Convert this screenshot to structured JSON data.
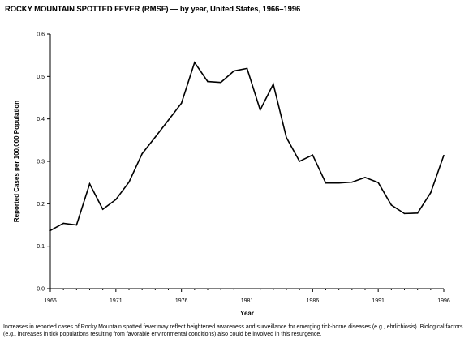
{
  "chart_data": {
    "type": "line",
    "title": "ROCKY MOUNTAIN SPOTTED FEVER (RMSF) — by year, United States, 1966–1996",
    "xlabel": "Year",
    "ylabel": "Reported Cases per 100,000 Population",
    "xlim": [
      1966,
      1996
    ],
    "ylim": [
      0,
      0.6
    ],
    "xticks": [
      "1966",
      "1971",
      "1976",
      "1981",
      "1986",
      "1991",
      "1996"
    ],
    "yticks": [
      "0.0",
      "0.1",
      "0.2",
      "0.3",
      "0.4",
      "0.5",
      "0.6"
    ],
    "grid": false,
    "x": [
      1966,
      1967,
      1968,
      1969,
      1970,
      1971,
      1972,
      1973,
      1974,
      1975,
      1976,
      1977,
      1978,
      1979,
      1980,
      1981,
      1982,
      1983,
      1984,
      1985,
      1986,
      1987,
      1988,
      1989,
      1990,
      1991,
      1992,
      1993,
      1994,
      1995,
      1996
    ],
    "series": [
      {
        "values": [
          0.137,
          0.154,
          0.15,
          0.247,
          0.187,
          0.21,
          0.251,
          0.318,
          0.357,
          0.397,
          0.437,
          0.533,
          0.488,
          0.486,
          0.513,
          0.519,
          0.421,
          0.482,
          0.356,
          0.3,
          0.315,
          0.249,
          0.249,
          0.251,
          0.262,
          0.25,
          0.197,
          0.177,
          0.178,
          0.226,
          0.314
        ]
      }
    ]
  },
  "footnote": "Increases in reported cases of Rocky Mountain spotted fever may reflect heightened awareness and surveillance for emerging tick-borne diseases (e.g., ehrlichiosis). Biological factors (e.g., increases in tick populations resulting from favorable environmental conditions) also could be involved in this resurgence.",
  "colors": {
    "line": "#000000",
    "axis": "#000000"
  }
}
